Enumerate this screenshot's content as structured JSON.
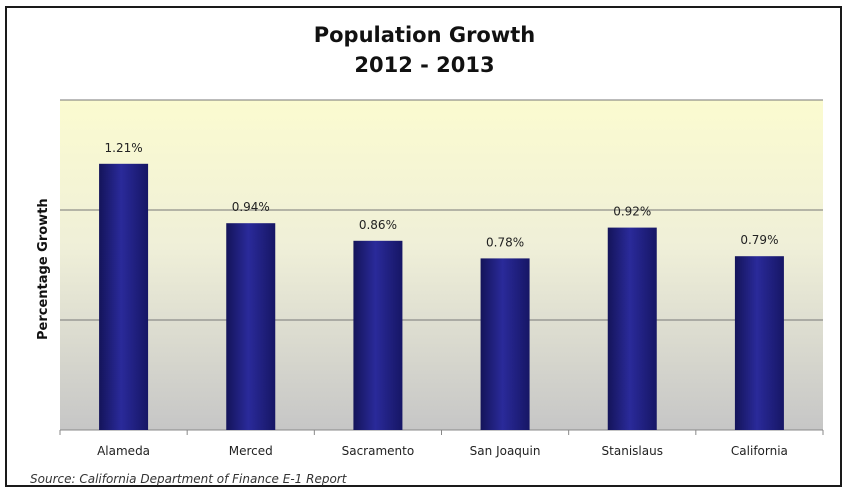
{
  "chart_data": {
    "type": "bar",
    "title": "Population Growth",
    "subtitle": "2012 - 2013",
    "ylabel": "Percentage Growth",
    "xlabel": "",
    "categories": [
      "Alameda",
      "Merced",
      "Sacramento",
      "San Joaquin",
      "Stanislaus",
      "California"
    ],
    "values": [
      1.21,
      0.94,
      0.86,
      0.78,
      0.92,
      0.79
    ],
    "data_labels": [
      "1.21%",
      "0.94%",
      "0.86%",
      "0.78%",
      "0.92%",
      "0.79%"
    ],
    "ylim": [
      0,
      1.5
    ],
    "gridlines": [
      0.5,
      1.0,
      1.5
    ],
    "grid": true,
    "legend": "none",
    "bar_color": "#1f1f7a",
    "background_gradient": [
      "#fbfbd0",
      "#c8c8c8"
    ]
  },
  "source_note": "Source: California Department of Finance E-1 Report"
}
